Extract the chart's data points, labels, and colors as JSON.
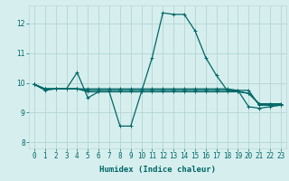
{
  "xlabel": "Humidex (Indice chaleur)",
  "ylabel": "",
  "bg_color": "#d6efee",
  "grid_color": "#b8d8d6",
  "line_color": "#006666",
  "x_values": [
    0,
    1,
    2,
    3,
    4,
    5,
    6,
    7,
    8,
    9,
    10,
    11,
    12,
    13,
    14,
    15,
    16,
    17,
    18,
    19,
    20,
    21,
    22,
    23
  ],
  "series": [
    [
      9.95,
      9.75,
      9.8,
      9.8,
      10.35,
      9.5,
      9.7,
      9.7,
      8.55,
      8.55,
      9.7,
      10.85,
      12.35,
      12.3,
      12.3,
      11.75,
      10.85,
      10.25,
      9.75,
      9.75,
      9.2,
      9.15,
      9.2,
      9.25
    ],
    [
      9.95,
      9.8,
      9.8,
      9.8,
      9.8,
      9.8,
      9.8,
      9.8,
      9.8,
      9.8,
      9.8,
      9.8,
      9.8,
      9.8,
      9.8,
      9.8,
      9.8,
      9.8,
      9.8,
      9.75,
      9.75,
      9.25,
      9.25,
      9.25
    ],
    [
      9.95,
      9.8,
      9.8,
      9.8,
      9.8,
      9.7,
      9.7,
      9.7,
      9.7,
      9.7,
      9.7,
      9.7,
      9.7,
      9.7,
      9.7,
      9.7,
      9.7,
      9.7,
      9.7,
      9.7,
      9.65,
      9.3,
      9.3,
      9.3
    ],
    [
      9.95,
      9.8,
      9.8,
      9.8,
      9.8,
      9.75,
      9.75,
      9.75,
      9.75,
      9.75,
      9.75,
      9.75,
      9.75,
      9.75,
      9.75,
      9.75,
      9.75,
      9.75,
      9.75,
      9.72,
      9.65,
      9.28,
      9.28,
      9.28
    ]
  ],
  "ylim": [
    7.8,
    12.6
  ],
  "xlim": [
    -0.5,
    23.5
  ],
  "yticks": [
    8,
    9,
    10,
    11,
    12
  ],
  "xticks": [
    0,
    1,
    2,
    3,
    4,
    5,
    6,
    7,
    8,
    9,
    10,
    11,
    12,
    13,
    14,
    15,
    16,
    17,
    18,
    19,
    20,
    21,
    22,
    23
  ],
  "xtick_labels": [
    "0",
    "1",
    "2",
    "3",
    "4",
    "5",
    "6",
    "7",
    "8",
    "9",
    "10",
    "11",
    "12",
    "13",
    "14",
    "15",
    "16",
    "17",
    "18",
    "19",
    "20",
    "21",
    "22",
    "23"
  ],
  "marker_size": 2.5,
  "line_width": 0.9,
  "xlabel_fontsize": 6.5,
  "tick_fontsize": 5.5
}
